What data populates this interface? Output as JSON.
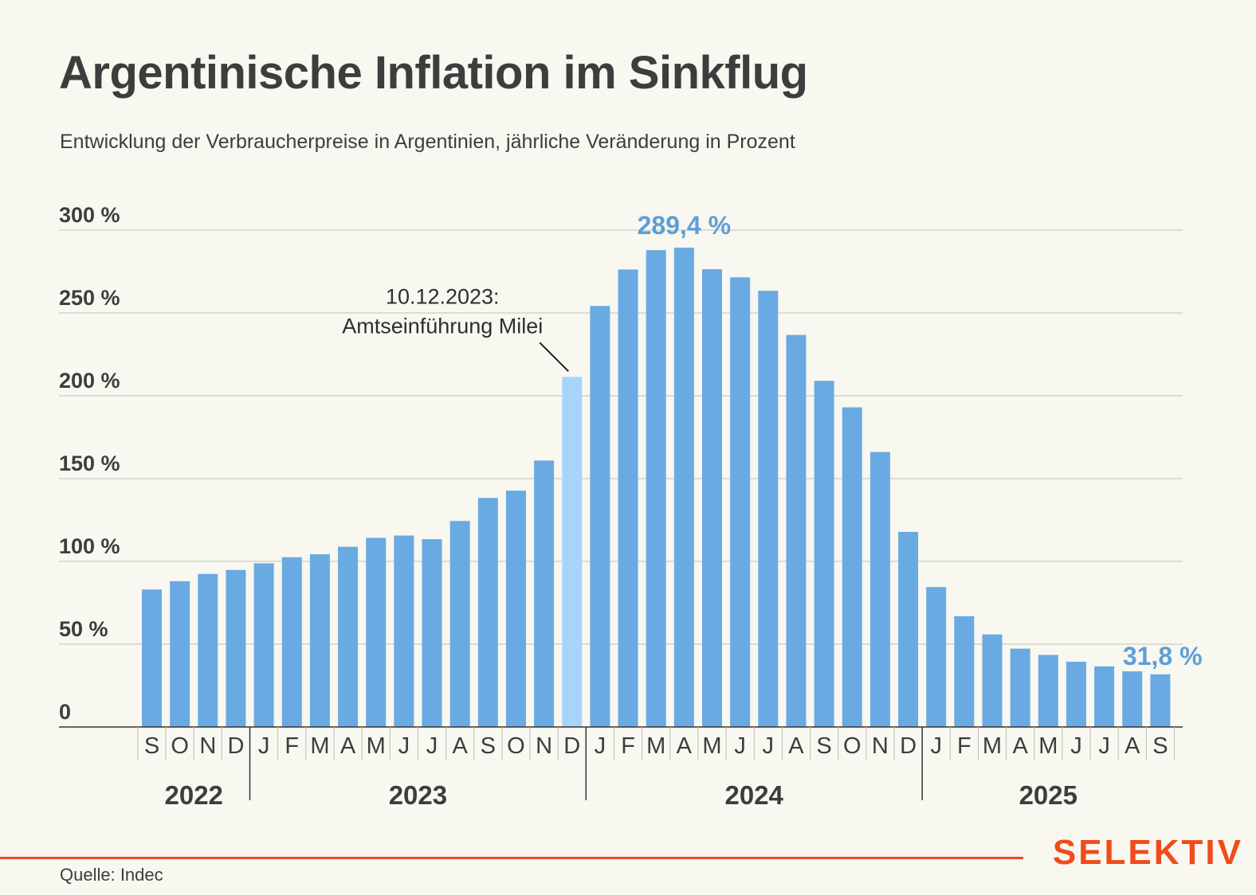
{
  "header": {
    "title": "Argentinische Inflation im Sinkflug",
    "subtitle": "Entwicklung der Verbraucherpreise in Argentinien, jährliche Veränderung in Prozent"
  },
  "footer": {
    "source": "Quelle: Indec",
    "brand": "SELEKTIV"
  },
  "colors": {
    "bar": "#6aaae2",
    "bar_highlight": "#a8d4fa",
    "accent_label": "#5c9fd9",
    "brand": "#f04b1a",
    "gridline": "#d3d3cc",
    "text": "#3d3d3d",
    "background": "#f8f7f0"
  },
  "chart_data": {
    "type": "bar",
    "title": "Argentinische Inflation im Sinkflug",
    "subtitle": "Entwicklung der Verbraucherpreise in Argentinien, jährliche Veränderung in Prozent",
    "xlabel": "",
    "ylabel": "",
    "ylim": [
      0,
      300
    ],
    "yticks": [
      0,
      50,
      100,
      150,
      200,
      250,
      300
    ],
    "ytick_labels": [
      "0",
      "50 %",
      "100 %",
      "150 %",
      "200 %",
      "250 %",
      "300 %"
    ],
    "grid": true,
    "categories": [
      "S",
      "O",
      "N",
      "D",
      "J",
      "F",
      "M",
      "A",
      "M",
      "J",
      "J",
      "A",
      "S",
      "O",
      "N",
      "D",
      "J",
      "F",
      "M",
      "A",
      "M",
      "J",
      "J",
      "A",
      "S",
      "O",
      "N",
      "D",
      "J",
      "F",
      "M",
      "A",
      "M",
      "J",
      "J",
      "A",
      "S"
    ],
    "years": [
      {
        "label": "2022",
        "start": 0,
        "count": 4
      },
      {
        "label": "2023",
        "start": 4,
        "count": 12
      },
      {
        "label": "2024",
        "start": 16,
        "count": 12
      },
      {
        "label": "2025",
        "start": 28,
        "count": 9
      }
    ],
    "values": [
      83.0,
      88.0,
      92.4,
      94.8,
      98.8,
      102.5,
      104.3,
      108.8,
      114.2,
      115.6,
      113.4,
      124.4,
      138.3,
      142.7,
      160.9,
      211.4,
      254.2,
      276.2,
      287.9,
      289.4,
      276.4,
      271.5,
      263.4,
      236.7,
      209.0,
      193.0,
      166.0,
      117.8,
      84.5,
      66.9,
      55.9,
      47.3,
      43.5,
      39.4,
      36.6,
      33.6,
      31.8
    ],
    "highlight_index": 15,
    "data_labels": [
      {
        "index": 19,
        "text": "289,4 %"
      },
      {
        "index": 36,
        "text": "31,8 %"
      }
    ],
    "annotation": {
      "index": 15,
      "line1": "10.12.2023:",
      "line2": "Amtseinführung Milei"
    },
    "legend": "none"
  }
}
